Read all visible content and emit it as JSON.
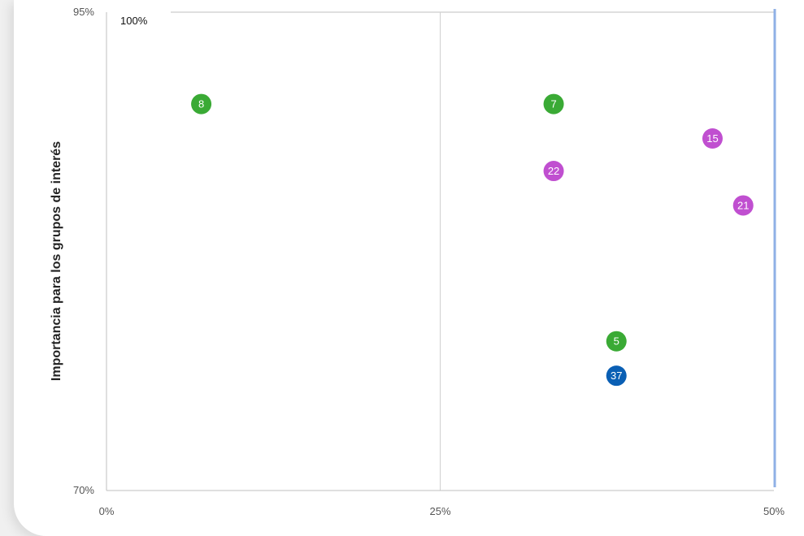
{
  "chart_data": {
    "type": "scatter",
    "ylabel": "Importancia para los grupos de interés",
    "xlabel": "",
    "corner_label": "100%",
    "xlim": [
      0,
      50
    ],
    "ylim": [
      70,
      95
    ],
    "x_ticks": [
      {
        "value": 0,
        "label": "0%"
      },
      {
        "value": 25,
        "label": "25%"
      },
      {
        "value": 50,
        "label": "50%"
      }
    ],
    "y_ticks": [
      {
        "value": 70,
        "label": "70%"
      },
      {
        "value": 95,
        "label": "95%"
      }
    ],
    "grid": "vertical line at x=25",
    "colors": {
      "green": "#3aaa35",
      "magenta": "#c04fd0",
      "blue": "#0a5fb4",
      "highlight_line": "#8fb0e6",
      "grid": "#d0d0d0",
      "axis": "#bfbfbf"
    },
    "points": [
      {
        "label": "8",
        "x": 7.1,
        "y": 90.2,
        "color": "green"
      },
      {
        "label": "7",
        "x": 33.5,
        "y": 90.2,
        "color": "green"
      },
      {
        "label": "15",
        "x": 45.4,
        "y": 88.4,
        "color": "magenta"
      },
      {
        "label": "22",
        "x": 33.5,
        "y": 86.7,
        "color": "magenta"
      },
      {
        "label": "21",
        "x": 47.7,
        "y": 84.9,
        "color": "magenta"
      },
      {
        "label": "5",
        "x": 38.2,
        "y": 77.8,
        "color": "green"
      },
      {
        "label": "37",
        "x": 38.2,
        "y": 76.0,
        "color": "blue"
      }
    ]
  }
}
